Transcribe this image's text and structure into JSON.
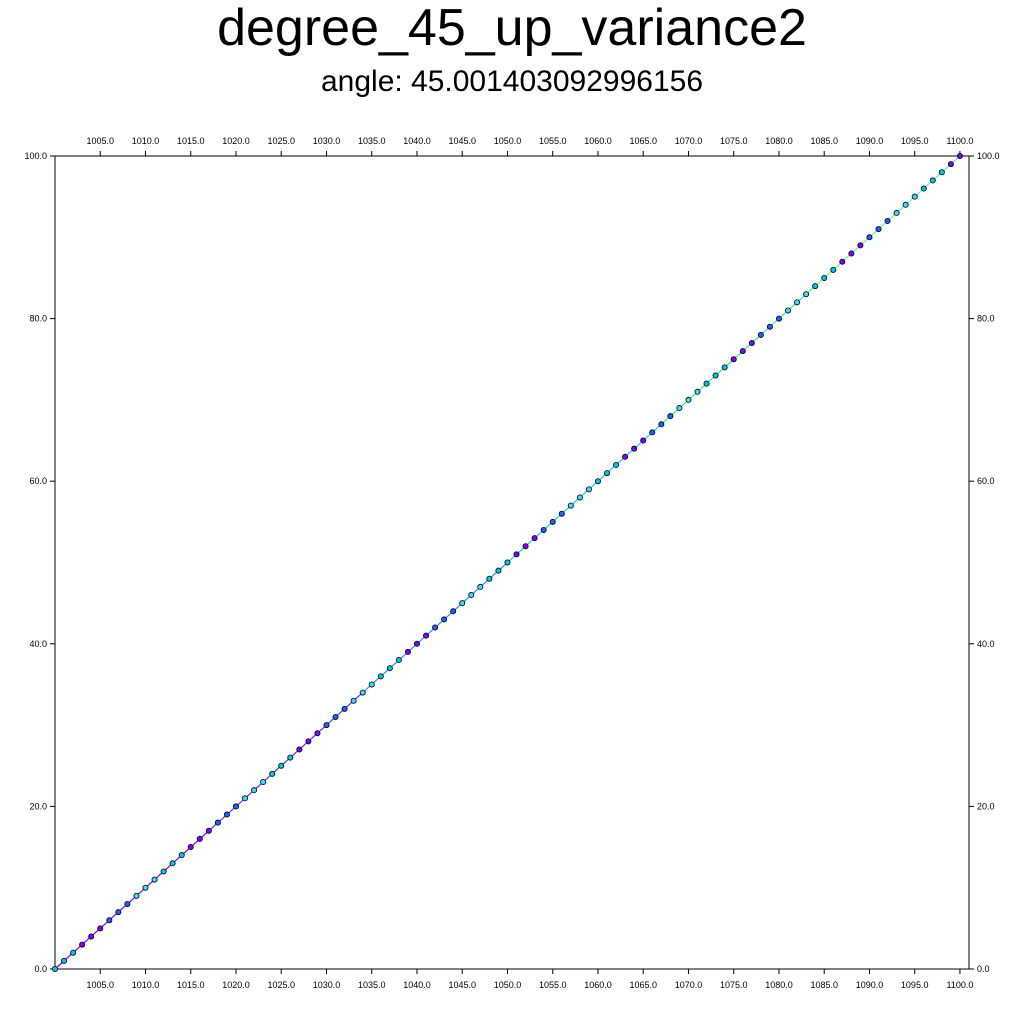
{
  "title": "degree_45_up_variance2",
  "subtitle": "angle: 45.001403092996156",
  "colors": {
    "background": "#ffffff",
    "axis": "#000000",
    "line_segments": [
      "#8000ff",
      "#4a3cff",
      "#2a8cff",
      "#22c8e0",
      "#3ce890",
      "#60ff80"
    ],
    "marker_fills": [
      "#00c8e0",
      "#8000ff",
      "#2060ff",
      "#40d8ff"
    ],
    "marker_stroke": "#000000"
  },
  "chart_data": {
    "type": "line",
    "xlim": [
      1000,
      1101
    ],
    "ylim": [
      0,
      100
    ],
    "grid": false,
    "x_ticks": [
      1005,
      1010,
      1015,
      1020,
      1025,
      1030,
      1035,
      1040,
      1045,
      1050,
      1055,
      1060,
      1065,
      1070,
      1075,
      1080,
      1085,
      1090,
      1095,
      1100
    ],
    "x_tick_labels": [
      "1005.0",
      "1010.0",
      "1015.0",
      "1020.0",
      "1025.0",
      "1030.0",
      "1035.0",
      "1040.0",
      "1045.0",
      "1050.0",
      "1055.0",
      "1060.0",
      "1065.0",
      "1070.0",
      "1075.0",
      "1080.0",
      "1085.0",
      "1090.0",
      "1095.0",
      "1100.0"
    ],
    "y_ticks": [
      0,
      20,
      40,
      60,
      80,
      100
    ],
    "y_tick_labels": [
      "0.0",
      "20.0",
      "40.0",
      "60.0",
      "80.0",
      "100.0"
    ],
    "series": [
      {
        "x": [
          1000,
          1001,
          1002,
          1003,
          1004,
          1005,
          1006,
          1007,
          1008,
          1009,
          1010,
          1011,
          1012,
          1013,
          1014,
          1015,
          1016,
          1017,
          1018,
          1019,
          1020,
          1021,
          1022,
          1023,
          1024,
          1025,
          1026,
          1027,
          1028,
          1029,
          1030,
          1031,
          1032,
          1033,
          1034,
          1035,
          1036,
          1037,
          1038,
          1039,
          1040,
          1041,
          1042,
          1043,
          1044,
          1045,
          1046,
          1047,
          1048,
          1049,
          1050,
          1051,
          1052,
          1053,
          1054,
          1055,
          1056,
          1057,
          1058,
          1059,
          1060,
          1061,
          1062,
          1063,
          1064,
          1065,
          1066,
          1067,
          1068,
          1069,
          1070,
          1071,
          1072,
          1073,
          1074,
          1075,
          1076,
          1077,
          1078,
          1079,
          1080,
          1081,
          1082,
          1083,
          1084,
          1085,
          1086,
          1087,
          1088,
          1089,
          1090,
          1091,
          1092,
          1093,
          1094,
          1095,
          1096,
          1097,
          1098,
          1099,
          1100
        ],
        "y": [
          0,
          1,
          2,
          3,
          4,
          5,
          6,
          7,
          8,
          9,
          10,
          11,
          12,
          13,
          14,
          15,
          16,
          17,
          18,
          19,
          20,
          21,
          22,
          23,
          24,
          25,
          26,
          27,
          28,
          29,
          30,
          31,
          32,
          33,
          34,
          35,
          36,
          37,
          38,
          39,
          40,
          41,
          42,
          43,
          44,
          45,
          46,
          47,
          48,
          49,
          50,
          51,
          52,
          53,
          54,
          55,
          56,
          57,
          58,
          59,
          60,
          61,
          62,
          63,
          64,
          65,
          66,
          67,
          68,
          69,
          70,
          71,
          72,
          73,
          74,
          75,
          76,
          77,
          78,
          79,
          80,
          81,
          82,
          83,
          84,
          85,
          86,
          87,
          88,
          89,
          90,
          91,
          92,
          93,
          94,
          95,
          96,
          97,
          98,
          99,
          100
        ]
      }
    ]
  }
}
